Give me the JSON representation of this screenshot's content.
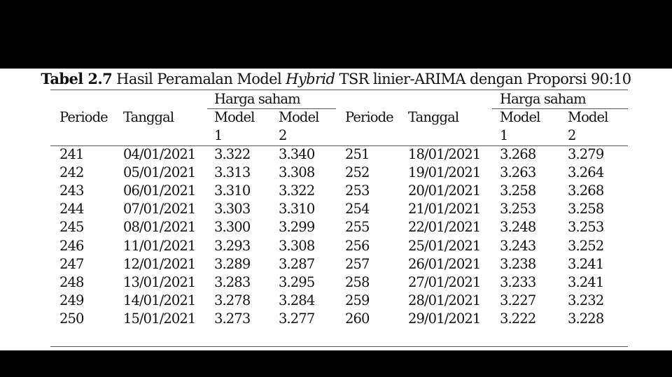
{
  "caption": {
    "label": "Tabel 2.7",
    "before_italic": " Hasil Peramalan Model ",
    "italic": "Hybrid",
    "after_italic": " TSR linier-ARIMA dengan Proporsi 90:10"
  },
  "headers": {
    "periode": "Periode",
    "tanggal": "Tanggal",
    "harga_saham": "Harga saham",
    "model": "Model",
    "model1_num": "1",
    "model2_num": "2"
  },
  "rows_left": [
    {
      "periode": "241",
      "tanggal": "04/01/2021",
      "model1": "3.322",
      "model2": "3.340"
    },
    {
      "periode": "242",
      "tanggal": "05/01/2021",
      "model1": "3.313",
      "model2": "3.308"
    },
    {
      "periode": "243",
      "tanggal": "06/01/2021",
      "model1": "3.310",
      "model2": "3.322"
    },
    {
      "periode": "244",
      "tanggal": "07/01/2021",
      "model1": "3.303",
      "model2": "3.310"
    },
    {
      "periode": "245",
      "tanggal": "08/01/2021",
      "model1": "3.300",
      "model2": "3.299"
    },
    {
      "periode": "246",
      "tanggal": "11/01/2021",
      "model1": "3.293",
      "model2": "3.308"
    },
    {
      "periode": "247",
      "tanggal": "12/01/2021",
      "model1": "3.289",
      "model2": "3.287"
    },
    {
      "periode": "248",
      "tanggal": "13/01/2021",
      "model1": "3.283",
      "model2": "3.295"
    },
    {
      "periode": "249",
      "tanggal": "14/01/2021",
      "model1": "3.278",
      "model2": "3.284"
    },
    {
      "periode": "250",
      "tanggal": "15/01/2021",
      "model1": "3.273",
      "model2": "3.277"
    }
  ],
  "rows_right": [
    {
      "periode": "251",
      "tanggal": "18/01/2021",
      "model1": "3.268",
      "model2": "3.279"
    },
    {
      "periode": "252",
      "tanggal": "19/01/2021",
      "model1": "3.263",
      "model2": "3.264"
    },
    {
      "periode": "253",
      "tanggal": "20/01/2021",
      "model1": "3.258",
      "model2": "3.268"
    },
    {
      "periode": "254",
      "tanggal": "21/01/2021",
      "model1": "3.253",
      "model2": "3.258"
    },
    {
      "periode": "255",
      "tanggal": "22/01/2021",
      "model1": "3.248",
      "model2": "3.253"
    },
    {
      "periode": "256",
      "tanggal": "25/01/2021",
      "model1": "3.243",
      "model2": "3.252"
    },
    {
      "periode": "257",
      "tanggal": "26/01/2021",
      "model1": "3.238",
      "model2": "3.241"
    },
    {
      "periode": "258",
      "tanggal": "27/01/2021",
      "model1": "3.233",
      "model2": "3.241"
    },
    {
      "periode": "259",
      "tanggal": "28/01/2021",
      "model1": "3.227",
      "model2": "3.232"
    },
    {
      "periode": "260",
      "tanggal": "29/01/2021",
      "model1": "3.222",
      "model2": "3.228"
    }
  ]
}
